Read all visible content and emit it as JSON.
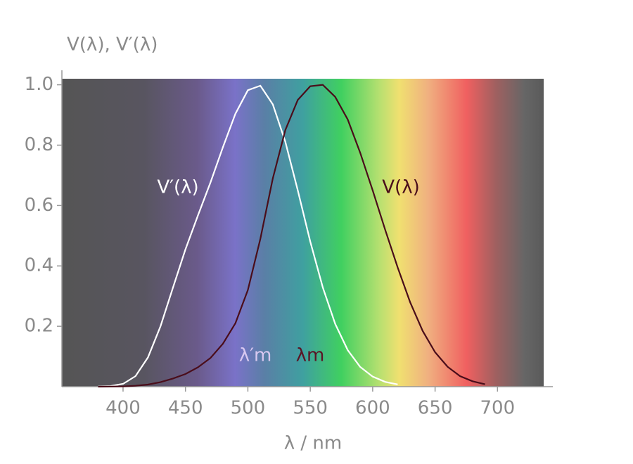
{
  "chart_data": {
    "type": "line",
    "y_label": "V(λ), V′(λ)",
    "x_label": "λ / nm",
    "annotations": [
      "λ′m",
      "λm"
    ],
    "xlim": [
      351,
      737
    ],
    "xticks": [
      400,
      450,
      500,
      550,
      600,
      650,
      700
    ],
    "ylim": [
      0,
      1.02
    ],
    "yticks": [
      0.2,
      0.4,
      0.6,
      0.8,
      {
        "value": 1,
        "label": "1.0"
      }
    ],
    "x": [
      380,
      390,
      400,
      410,
      420,
      430,
      440,
      450,
      460,
      470,
      480,
      490,
      500,
      510,
      520,
      530,
      540,
      550,
      560,
      570,
      580,
      590,
      600,
      610,
      620,
      630,
      640,
      650,
      660,
      670,
      680,
      690
    ],
    "series": [
      {
        "name": "V′(λ)",
        "color": "#ffffff",
        "values": [
          0.0006,
          0.0022,
          0.0093,
          0.035,
          0.097,
          0.2,
          0.328,
          0.455,
          0.567,
          0.676,
          0.793,
          0.904,
          0.982,
          0.997,
          0.935,
          0.811,
          0.65,
          0.481,
          0.329,
          0.208,
          0.121,
          0.0655,
          0.0332,
          0.0159,
          0.0074,
          null,
          null,
          null,
          null,
          null,
          null,
          null
        ]
      },
      {
        "name": "V(λ)",
        "color": "#4a0d1a",
        "values": [
          0.0001,
          0.0003,
          0.001,
          0.003,
          0.007,
          0.015,
          0.027,
          0.042,
          0.064,
          0.095,
          0.142,
          0.21,
          0.32,
          0.49,
          0.69,
          0.85,
          0.95,
          0.995,
          1.0,
          0.96,
          0.885,
          0.775,
          0.65,
          0.52,
          0.395,
          0.28,
          0.185,
          0.114,
          0.066,
          0.035,
          0.018,
          0.008
        ]
      }
    ]
  }
}
